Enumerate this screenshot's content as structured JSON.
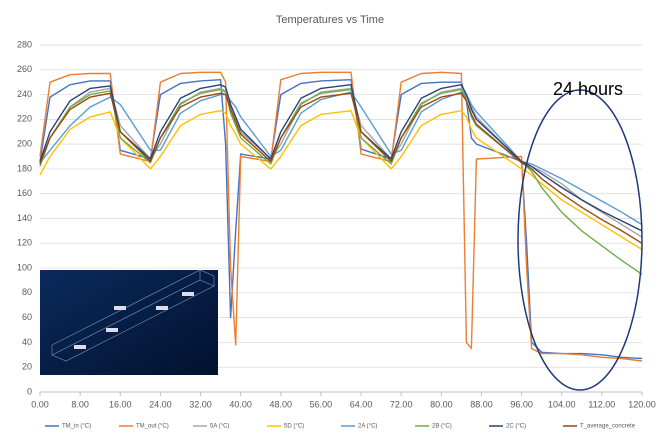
{
  "chart_data": {
    "type": "line",
    "title": "Temperatures vs Time",
    "annotation": "24 hours",
    "x": [
      0,
      2,
      6,
      10,
      14,
      16,
      22,
      24,
      28,
      32,
      36,
      37,
      38,
      39,
      40,
      46,
      48,
      52,
      56,
      62,
      64,
      70,
      72,
      76,
      80,
      84,
      85,
      86,
      87,
      96,
      97,
      98,
      100,
      104,
      108,
      112,
      116,
      120
    ],
    "xlim": [
      0,
      120
    ],
    "xticks": [
      {
        "value": 0,
        "label": "0.00"
      },
      {
        "value": 8,
        "label": "8.00"
      },
      {
        "value": 16,
        "label": "16.00"
      },
      {
        "value": 24,
        "label": "24.00"
      },
      {
        "value": 32,
        "label": "32.00"
      },
      {
        "value": 40,
        "label": "40.00"
      },
      {
        "value": 48,
        "label": "48.00"
      },
      {
        "value": 56,
        "label": "56.00"
      },
      {
        "value": 64,
        "label": "64.00"
      },
      {
        "value": 72,
        "label": "72.00"
      },
      {
        "value": 80,
        "label": "80.00"
      },
      {
        "value": 88,
        "label": "88.00"
      },
      {
        "value": 96,
        "label": "96.00"
      },
      {
        "value": 104,
        "label": "104.00"
      },
      {
        "value": 112,
        "label": "112.00"
      },
      {
        "value": 120,
        "label": "120.00"
      }
    ],
    "ylim": [
      0,
      280
    ],
    "yticks": [
      0,
      20,
      40,
      60,
      80,
      100,
      120,
      140,
      160,
      180,
      200,
      220,
      240,
      260,
      280
    ],
    "grid": true,
    "series": [
      {
        "name": "TM_in (°C)",
        "color": "#4472c4",
        "values": [
          186,
          238,
          248,
          251,
          251,
          195,
          188,
          240,
          249,
          251,
          252,
          200,
          60,
          130,
          192,
          188,
          240,
          249,
          251,
          252,
          196,
          188,
          240,
          249,
          250,
          250,
          235,
          205,
          200,
          186,
          120,
          40,
          32,
          31,
          31,
          30,
          28,
          27
        ]
      },
      {
        "name": "TM_out (°C)",
        "color": "#ed7d31",
        "values": [
          190,
          250,
          256,
          257,
          257,
          192,
          186,
          250,
          257,
          258,
          258,
          250,
          100,
          38,
          190,
          186,
          252,
          257,
          258,
          258,
          192,
          186,
          250,
          257,
          258,
          257,
          40,
          35,
          188,
          190,
          100,
          35,
          31,
          31,
          30,
          28,
          27,
          25
        ]
      },
      {
        "name": "5A (°C)",
        "color": "#a5a5a5",
        "values": [
          185,
          205,
          230,
          242,
          245,
          215,
          188,
          200,
          232,
          242,
          245,
          243,
          230,
          220,
          210,
          188,
          200,
          232,
          242,
          245,
          215,
          188,
          200,
          232,
          242,
          245,
          240,
          230,
          222,
          185,
          184,
          182,
          178,
          168,
          155,
          145,
          135,
          125
        ]
      },
      {
        "name": "5D (°C)",
        "color": "#ffc000",
        "values": [
          175,
          190,
          212,
          222,
          226,
          205,
          180,
          190,
          215,
          224,
          227,
          225,
          215,
          208,
          200,
          180,
          190,
          215,
          224,
          227,
          205,
          180,
          190,
          215,
          224,
          227,
          222,
          212,
          205,
          180,
          178,
          175,
          168,
          155,
          145,
          135,
          125,
          115
        ]
      },
      {
        "name": "2A (°C)",
        "color": "#5b9bd5",
        "values": [
          185,
          195,
          215,
          230,
          238,
          232,
          195,
          195,
          225,
          235,
          240,
          240,
          235,
          230,
          222,
          190,
          195,
          225,
          236,
          242,
          230,
          192,
          195,
          226,
          236,
          242,
          240,
          232,
          226,
          186,
          185,
          184,
          180,
          172,
          163,
          154,
          145,
          135
        ]
      },
      {
        "name": "2B (°C)",
        "color": "#70ad47",
        "values": [
          182,
          205,
          230,
          240,
          243,
          205,
          185,
          205,
          233,
          241,
          244,
          242,
          225,
          215,
          205,
          184,
          205,
          233,
          241,
          244,
          205,
          184,
          205,
          233,
          241,
          244,
          235,
          222,
          215,
          185,
          182,
          178,
          165,
          145,
          130,
          118,
          106,
          95
        ]
      },
      {
        "name": "2C (°C)",
        "color": "#264478",
        "values": [
          186,
          210,
          235,
          245,
          247,
          210,
          188,
          210,
          237,
          245,
          248,
          246,
          232,
          222,
          212,
          188,
          210,
          237,
          245,
          248,
          210,
          188,
          210,
          237,
          245,
          248,
          240,
          228,
          220,
          186,
          184,
          182,
          176,
          165,
          155,
          146,
          138,
          130
        ]
      },
      {
        "name": "T_average_concrete",
        "color": "#9e480e",
        "values": [
          184,
          205,
          228,
          238,
          241,
          210,
          186,
          205,
          230,
          238,
          241,
          240,
          228,
          218,
          208,
          186,
          205,
          230,
          238,
          241,
          210,
          186,
          205,
          230,
          238,
          241,
          235,
          224,
          216,
          185,
          183,
          180,
          172,
          160,
          149,
          139,
          130,
          120
        ]
      }
    ]
  }
}
